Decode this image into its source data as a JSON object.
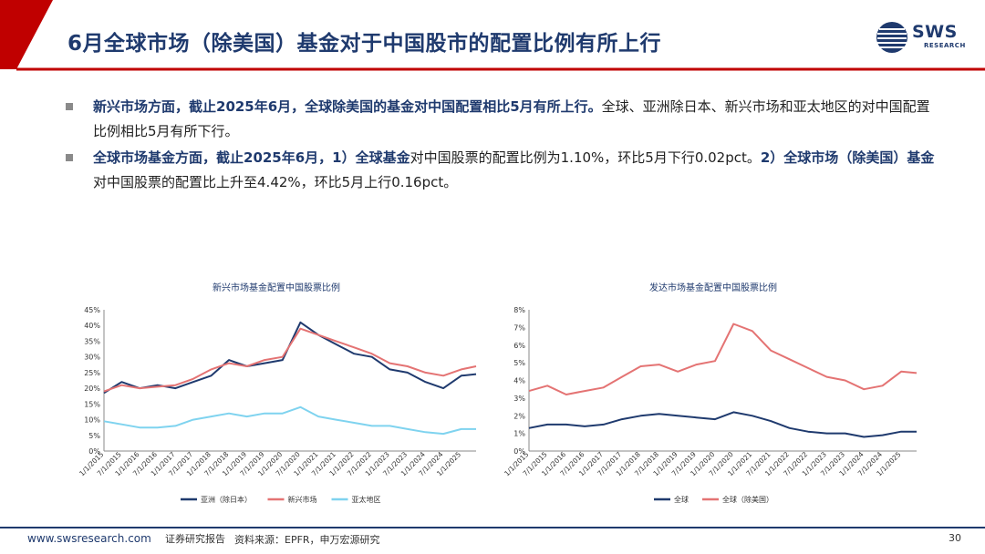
{
  "slide": {
    "title": "6月全球市场（除美国）基金对于中国股市的配置比例有所上行",
    "page_number": "30"
  },
  "logo": {
    "text": "SWS",
    "sub": "RESEARCH"
  },
  "bullets": [
    {
      "bold": "新兴市场方面，截止2025年6月，全球除美国的基金对中国配置相比5月有所上行。",
      "text": "全球、亚洲除日本、新兴市场和亚太地区的对中国配置比例相比5月有所下行。"
    },
    {
      "bold1": "全球市场基金方面，截止2025年6月，1）全球基金",
      "text1": "对中国股票的配置比例为1.10%，环比5月下行0.02pct。",
      "bold2": "2）全球市场（除美国）基金",
      "text2": "对中国股票的配置比上升至4.42%，环比5月上行0.16pct。"
    }
  ],
  "footer": {
    "url": "www.swsresearch.com",
    "report": "证券研究报告",
    "source": "资料来源：EPFR，申万宏源研究"
  },
  "colors": {
    "navy": "#1f3a6e",
    "red": "#c00000",
    "series_navy": "#1f3a6e",
    "series_salmon": "#e47373",
    "series_cyan": "#7fd3ef"
  },
  "chart_data": [
    {
      "type": "line",
      "title": "新兴市场基金配置中国股票比例",
      "x": [
        "1/1/2015",
        "7/1/2015",
        "1/1/2016",
        "7/1/2016",
        "1/1/2017",
        "7/1/2017",
        "1/1/2018",
        "7/1/2018",
        "1/1/2019",
        "7/1/2019",
        "1/1/2020",
        "7/1/2020",
        "1/1/2021",
        "7/1/2021",
        "1/1/2022",
        "7/1/2022",
        "1/1/2023",
        "7/1/2023",
        "1/1/2024",
        "7/1/2024",
        "1/1/2025",
        "6/1/2025"
      ],
      "x_ticks": [
        "1/1/2015",
        "7/1/2015",
        "1/1/2016",
        "7/1/2016",
        "1/1/2017",
        "7/1/2017",
        "1/1/2018",
        "7/1/2018",
        "1/1/2019",
        "7/1/2019",
        "1/1/2020",
        "7/1/2020",
        "1/1/2021",
        "7/1/2021",
        "1/1/2022",
        "7/1/2022",
        "1/1/2023",
        "7/1/2023",
        "1/1/2024",
        "7/1/2024",
        "1/1/2025"
      ],
      "y_ticks": [
        "0%",
        "5%",
        "10%",
        "15%",
        "20%",
        "25%",
        "30%",
        "35%",
        "40%",
        "45%"
      ],
      "ylim": [
        0,
        45
      ],
      "series": [
        {
          "name": "亚洲（除日本）",
          "color": "#1f3a6e",
          "values": [
            18.5,
            22,
            20,
            21,
            20,
            22,
            24,
            29,
            27,
            28,
            29,
            41,
            37,
            34,
            31,
            30,
            26,
            25,
            22,
            20,
            24,
            24.5
          ]
        },
        {
          "name": "新兴市场",
          "color": "#e47373",
          "values": [
            19,
            21,
            20,
            20.5,
            21,
            23,
            26,
            28,
            27,
            29,
            30,
            39,
            37,
            35,
            33,
            31,
            28,
            27,
            25,
            24,
            26,
            27
          ]
        },
        {
          "name": "亚太地区",
          "color": "#7fd3ef",
          "values": [
            9.5,
            8.5,
            7.5,
            7.5,
            8,
            10,
            11,
            12,
            11,
            12,
            12,
            14,
            11,
            10,
            9,
            8,
            8,
            7,
            6,
            5.5,
            7,
            7
          ]
        }
      ],
      "legend": "bottom"
    },
    {
      "type": "line",
      "title": "发达市场基金配置中国股票比例",
      "x": [
        "1/1/2015",
        "7/1/2015",
        "1/1/2016",
        "7/1/2016",
        "1/1/2017",
        "7/1/2017",
        "1/1/2018",
        "7/1/2018",
        "1/1/2019",
        "7/1/2019",
        "1/1/2020",
        "7/1/2020",
        "1/1/2021",
        "7/1/2021",
        "1/1/2022",
        "7/1/2022",
        "1/1/2023",
        "7/1/2023",
        "1/1/2024",
        "7/1/2024",
        "1/1/2025",
        "6/1/2025"
      ],
      "x_ticks": [
        "1/1/2015",
        "7/1/2015",
        "1/1/2016",
        "7/1/2016",
        "1/1/2017",
        "7/1/2017",
        "1/1/2018",
        "7/1/2018",
        "1/1/2019",
        "7/1/2019",
        "1/1/2020",
        "7/1/2020",
        "1/1/2021",
        "7/1/2021",
        "1/1/2022",
        "7/1/2022",
        "1/1/2023",
        "7/1/2023",
        "1/1/2024",
        "7/1/2024",
        "1/1/2025"
      ],
      "y_ticks": [
        "0%",
        "1%",
        "2%",
        "3%",
        "4%",
        "5%",
        "6%",
        "7%",
        "8%"
      ],
      "ylim": [
        0,
        8
      ],
      "series": [
        {
          "name": "全球",
          "color": "#1f3a6e",
          "values": [
            1.3,
            1.5,
            1.5,
            1.4,
            1.5,
            1.8,
            2.0,
            2.1,
            2.0,
            1.9,
            1.8,
            2.2,
            2.0,
            1.7,
            1.3,
            1.1,
            1.0,
            1.0,
            0.8,
            0.9,
            1.1,
            1.1
          ]
        },
        {
          "name": "全球（除美国）",
          "color": "#e47373",
          "values": [
            3.4,
            3.7,
            3.2,
            3.4,
            3.6,
            4.2,
            4.8,
            4.9,
            4.5,
            4.9,
            5.1,
            7.2,
            6.8,
            5.7,
            5.2,
            4.7,
            4.2,
            4.0,
            3.5,
            3.7,
            4.5,
            4.42
          ]
        }
      ],
      "legend": "bottom"
    }
  ]
}
